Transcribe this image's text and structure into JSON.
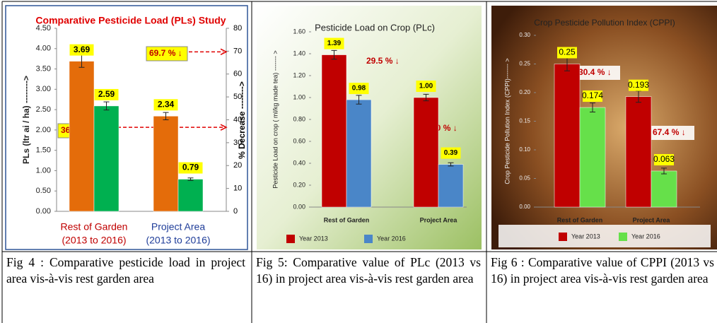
{
  "chart_data": [
    {
      "type": "bar",
      "title": "Comparative Pesticide Load (PLs) Study",
      "ylabel": "PLs (ltr ai / ha) -------->",
      "y2label": "% Decrease -------->",
      "categories": [
        [
          "Rest of Garden",
          "(2013 to 2016)"
        ],
        [
          "Project Area",
          "(2013 to 2016)"
        ]
      ],
      "series": [
        {
          "color": "#e46c0a",
          "values": [
            3.69,
            2.34
          ],
          "errors": [
            0.15,
            0.09
          ]
        },
        {
          "color": "#00b050",
          "values": [
            2.59,
            0.79
          ],
          "errors": [
            0.1,
            0.03
          ]
        }
      ],
      "ylim": [
        0,
        4.5
      ],
      "yticks": [
        {
          "value": 0,
          "label": "0.00"
        },
        {
          "value": 0.5,
          "label": "0.50"
        },
        {
          "value": 1,
          "label": "1.00"
        },
        {
          "value": 1.5,
          "label": "1.50"
        },
        {
          "value": 2,
          "label": "2.00"
        },
        {
          "value": 2.5,
          "label": "2.50"
        },
        {
          "value": 3,
          "label": "3.00"
        },
        {
          "value": 3.5,
          "label": "3.50"
        },
        {
          "value": 4,
          "label": "4.00"
        },
        {
          "value": 4.5,
          "label": "4.50"
        }
      ],
      "y2lim": [
        0,
        80
      ],
      "y2ticks": [
        0,
        10,
        20,
        30,
        40,
        50,
        60,
        70,
        80
      ],
      "annotations": [
        {
          "text": "69.7 % ↓",
          "value": 69.7
        },
        {
          "text": "36.7 % ↓",
          "value": 36.7
        }
      ]
    },
    {
      "type": "bar",
      "title": "Pesticide Load on Crop (PLc)",
      "ylabel": "Pesticide Load on crop ( ml/kg made tea) ------- >",
      "categories": [
        "Rest of Garden",
        "Project Area"
      ],
      "series": [
        {
          "name": "Year 2013",
          "color": "#c00000",
          "values": [
            1.39,
            1.0
          ],
          "value_labels": [
            "1.39",
            "1.00"
          ],
          "errors": [
            0.04,
            0.03
          ]
        },
        {
          "name": "Year 2016",
          "color": "#4a86c8",
          "values": [
            0.98,
            0.39
          ],
          "errors": [
            0.04,
            0.015
          ]
        }
      ],
      "ylim": [
        0,
        1.6
      ],
      "yticks": [
        {
          "value": 0,
          "label": "0.00"
        },
        {
          "value": 0.2,
          "label": "0.20"
        },
        {
          "value": 0.4,
          "label": "0.40"
        },
        {
          "value": 0.6,
          "label": "0.60"
        },
        {
          "value": 0.8,
          "label": "0.80"
        },
        {
          "value": 1,
          "label": "1.00"
        },
        {
          "value": 1.2,
          "label": "1.20"
        },
        {
          "value": 1.4,
          "label": "1.40"
        },
        {
          "value": 1.6,
          "label": "1.60"
        }
      ],
      "annotations": [
        "29.5 % ↓",
        "61.0 % ↓"
      ]
    },
    {
      "type": "bar",
      "title": "Crop Pesticide Pollution Index (CPPI)",
      "ylabel": "Crop Pesticide Pollution Index (CPPI)------- >",
      "categories": [
        "Rest of Garden",
        "Project Area"
      ],
      "series": [
        {
          "name": "Year 2013",
          "color": "#c00000",
          "values": [
            0.25,
            0.193
          ],
          "errors": [
            0.012,
            0.01
          ]
        },
        {
          "name": "Year 2016",
          "color": "#66e04a",
          "values": [
            0.174,
            0.063
          ],
          "errors": [
            0.008,
            0.005
          ]
        }
      ],
      "ylim": [
        0,
        0.3
      ],
      "yticks": [
        {
          "value": 0,
          "label": "0.00"
        },
        {
          "value": 0.05,
          "label": "0.05"
        },
        {
          "value": 0.1,
          "label": "0.10"
        },
        {
          "value": 0.15,
          "label": "0.15"
        },
        {
          "value": 0.2,
          "label": "0.20"
        },
        {
          "value": 0.25,
          "label": "0.25"
        },
        {
          "value": 0.3,
          "label": "0.30"
        }
      ],
      "annotations": [
        "30.4 % ↓",
        "67.4 % ↓"
      ]
    }
  ],
  "captions": [
    "Fig 4 : Comparative pesticide load in project area vis-à-vis rest garden area",
    "Fig 5: Comparative value of PLc (2013 vs 16) in project area vis-à-vis rest garden area",
    "Fig 6 : Comparative value of CPPI (2013 vs 16) in project area vis-à-vis rest garden area"
  ]
}
